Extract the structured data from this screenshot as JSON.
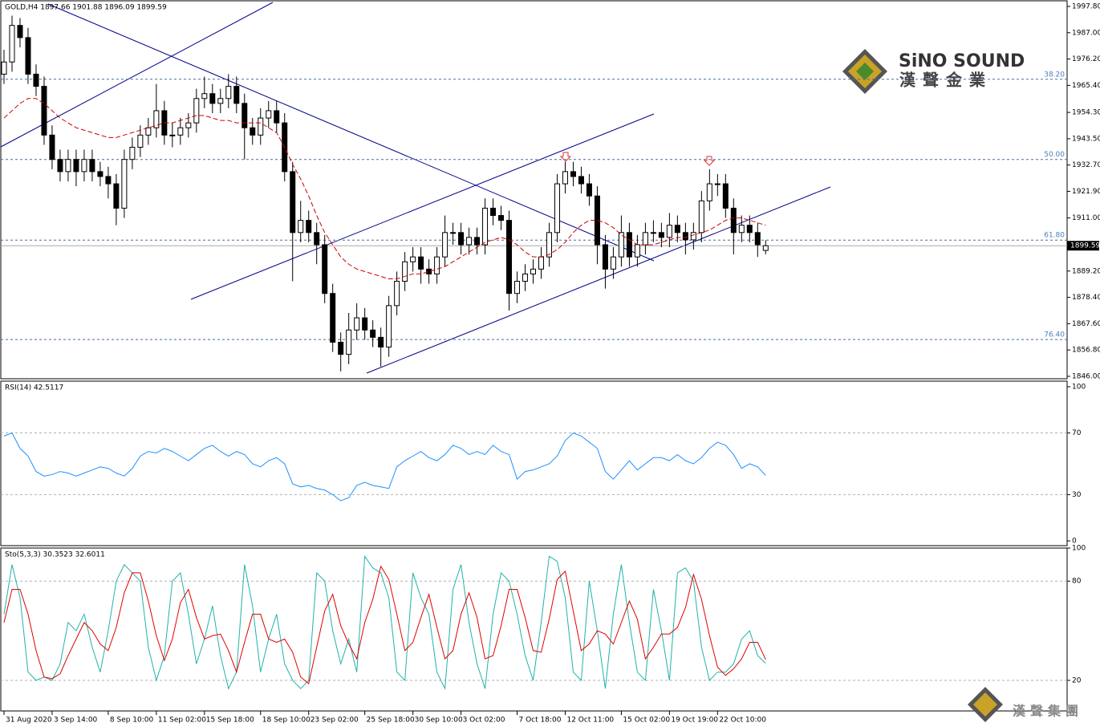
{
  "chart_data": [
    {
      "type": "candlestick",
      "title": "GOLD,H4  1897.66 1901.88 1896.09 1899.59",
      "color": "#000000",
      "candles": [
        [
          1970,
          1980,
          1966,
          1975
        ],
        [
          1975,
          1994,
          1971,
          1990
        ],
        [
          1990,
          1993,
          1981,
          1985
        ],
        [
          1985,
          1989,
          1966,
          1970
        ],
        [
          1970,
          1974,
          1961,
          1965
        ],
        [
          1965,
          1969,
          1941,
          1945
        ],
        [
          1945,
          1949,
          1931,
          1935
        ],
        [
          1935,
          1939,
          1926,
          1930
        ],
        [
          1930,
          1939,
          1926,
          1935
        ],
        [
          1935,
          1939,
          1924,
          1930
        ],
        [
          1930,
          1939,
          1926,
          1935
        ],
        [
          1935,
          1939,
          1926,
          1930
        ],
        [
          1930,
          1934,
          1924,
          1928
        ],
        [
          1928,
          1932,
          1919,
          1925
        ],
        [
          1925,
          1929,
          1908,
          1915
        ],
        [
          1915,
          1939,
          1911,
          1935
        ],
        [
          1935,
          1944,
          1931,
          1940
        ],
        [
          1940,
          1949,
          1936,
          1945
        ],
        [
          1945,
          1952,
          1941,
          1948
        ],
        [
          1948,
          1966,
          1944,
          1955
        ],
        [
          1955,
          1959,
          1941,
          1945
        ],
        [
          1945,
          1950,
          1940,
          1945
        ],
        [
          1945,
          1952,
          1941,
          1948
        ],
        [
          1948,
          1954,
          1944,
          1950
        ],
        [
          1950,
          1964,
          1946,
          1960
        ],
        [
          1960,
          1969,
          1956,
          1962
        ],
        [
          1962,
          1966,
          1954,
          1958
        ],
        [
          1958,
          1964,
          1954,
          1960
        ],
        [
          1960,
          1970,
          1956,
          1965
        ],
        [
          1965,
          1969,
          1954,
          1958
        ],
        [
          1958,
          1962,
          1935,
          1948
        ],
        [
          1948,
          1952,
          1941,
          1945
        ],
        [
          1945,
          1956,
          1941,
          1952
        ],
        [
          1952,
          1959,
          1948,
          1955
        ],
        [
          1955,
          1959,
          1946,
          1950
        ],
        [
          1950,
          1954,
          1926,
          1930
        ],
        [
          1930,
          1934,
          1885,
          1905
        ],
        [
          1905,
          1918,
          1901,
          1910
        ],
        [
          1910,
          1914,
          1901,
          1905
        ],
        [
          1905,
          1909,
          1892,
          1900
        ],
        [
          1900,
          1904,
          1876,
          1880
        ],
        [
          1880,
          1884,
          1856,
          1860
        ],
        [
          1860,
          1864,
          1848,
          1855
        ],
        [
          1855,
          1872,
          1851,
          1865
        ],
        [
          1865,
          1876,
          1861,
          1870
        ],
        [
          1870,
          1874,
          1861,
          1865
        ],
        [
          1865,
          1869,
          1858,
          1862
        ],
        [
          1862,
          1866,
          1850,
          1858
        ],
        [
          1858,
          1879,
          1854,
          1875
        ],
        [
          1875,
          1889,
          1871,
          1885
        ],
        [
          1885,
          1897,
          1881,
          1893
        ],
        [
          1893,
          1899,
          1889,
          1895
        ],
        [
          1895,
          1899,
          1884,
          1890
        ],
        [
          1890,
          1894,
          1884,
          1888
        ],
        [
          1888,
          1899,
          1884,
          1895
        ],
        [
          1895,
          1912,
          1891,
          1905
        ],
        [
          1905,
          1909,
          1900,
          1905
        ],
        [
          1905,
          1909,
          1896,
          1900
        ],
        [
          1900,
          1907,
          1896,
          1903
        ],
        [
          1903,
          1907,
          1896,
          1900
        ],
        [
          1900,
          1919,
          1896,
          1915
        ],
        [
          1915,
          1919,
          1908,
          1912
        ],
        [
          1912,
          1916,
          1906,
          1910
        ],
        [
          1910,
          1914,
          1873,
          1880
        ],
        [
          1880,
          1889,
          1876,
          1885
        ],
        [
          1885,
          1892,
          1881,
          1888
        ],
        [
          1888,
          1894,
          1884,
          1890
        ],
        [
          1890,
          1899,
          1886,
          1895
        ],
        [
          1895,
          1909,
          1891,
          1905
        ],
        [
          1905,
          1929,
          1901,
          1925
        ],
        [
          1925,
          1934,
          1921,
          1930
        ],
        [
          1930,
          1934,
          1924,
          1928
        ],
        [
          1928,
          1932,
          1921,
          1925
        ],
        [
          1925,
          1929,
          1916,
          1920
        ],
        [
          1920,
          1924,
          1892,
          1900
        ],
        [
          1900,
          1904,
          1882,
          1890
        ],
        [
          1890,
          1899,
          1886,
          1895
        ],
        [
          1895,
          1912,
          1891,
          1905
        ],
        [
          1905,
          1909,
          1891,
          1895
        ],
        [
          1895,
          1904,
          1891,
          1900
        ],
        [
          1900,
          1909,
          1896,
          1905
        ],
        [
          1905,
          1910,
          1901,
          1905
        ],
        [
          1905,
          1909,
          1899,
          1903
        ],
        [
          1903,
          1913,
          1899,
          1908
        ],
        [
          1908,
          1912,
          1901,
          1905
        ],
        [
          1905,
          1909,
          1896,
          1902
        ],
        [
          1902,
          1909,
          1898,
          1905
        ],
        [
          1905,
          1922,
          1901,
          1918
        ],
        [
          1918,
          1931,
          1914,
          1925
        ],
        [
          1925,
          1929,
          1920,
          1925
        ],
        [
          1925,
          1929,
          1911,
          1915
        ],
        [
          1915,
          1919,
          1896,
          1905
        ],
        [
          1905,
          1912,
          1901,
          1908
        ],
        [
          1908,
          1912,
          1901,
          1905
        ],
        [
          1905,
          1909,
          1895,
          1900
        ],
        [
          1897.66,
          1901.88,
          1896.09,
          1899.59
        ]
      ],
      "ma": {
        "color": "#cc0000",
        "values": [
          1952,
          1955,
          1958,
          1960,
          1960,
          1958,
          1955,
          1952,
          1950,
          1948,
          1947,
          1946,
          1945,
          1944,
          1944,
          1945,
          1946,
          1947,
          1948,
          1949,
          1950,
          1950,
          1951,
          1952,
          1953,
          1953,
          1952,
          1951,
          1951,
          1950,
          1950,
          1950,
          1950,
          1948,
          1946,
          1940,
          1933,
          1927,
          1920,
          1912,
          1905,
          1900,
          1895,
          1892,
          1890,
          1889,
          1888,
          1887,
          1886,
          1886,
          1887,
          1888,
          1888,
          1889,
          1890,
          1891,
          1893,
          1895,
          1897,
          1899,
          1901,
          1902,
          1903,
          1902,
          1900,
          1897,
          1895,
          1895,
          1896,
          1898,
          1901,
          1905,
          1908,
          1910,
          1910,
          1909,
          1907,
          1904,
          1902,
          1900,
          1900,
          1900,
          1901,
          1902,
          1903,
          1903,
          1904,
          1905,
          1906,
          1908,
          1910,
          1911,
          1911,
          1910,
          1909,
          1908
        ]
      },
      "ylim": [
        1845,
        2000.1
      ],
      "yticks": [
        {
          "value": 1997.8,
          "label": "1997.80"
        },
        {
          "value": 1987,
          "label": "1987.00"
        },
        {
          "value": 1976.2,
          "label": "1976.20"
        },
        {
          "value": 1965.4,
          "label": "1965.40"
        },
        {
          "value": 1954.3,
          "label": "1954.30"
        },
        {
          "value": 1943.5,
          "label": "1943.50"
        },
        {
          "value": 1932.7,
          "label": "1932.70"
        },
        {
          "value": 1921.9,
          "label": "1921.90"
        },
        {
          "value": 1911,
          "label": "1911.00"
        },
        {
          "value": 1889.2,
          "label": "1889.20"
        },
        {
          "value": 1878.4,
          "label": "1878.40"
        },
        {
          "value": 1867.6,
          "label": "1867.60"
        },
        {
          "value": 1856.8,
          "label": "1856.80"
        },
        {
          "value": 1846,
          "label": "1846.00"
        }
      ],
      "last_price": 1899.59,
      "fib_levels": [
        {
          "label": "38.20",
          "price": 1967.9
        },
        {
          "label": "50.00",
          "price": 1935.0
        },
        {
          "label": "61.80",
          "price": 1901.9
        },
        {
          "label": "76.40",
          "price": 1861.1
        }
      ],
      "xlim": [
        -0.4,
        132.6
      ],
      "xticks": [
        {
          "value": 0,
          "label": "31 Aug 2020"
        },
        {
          "value": 6,
          "label": "3 Sep 14:00"
        },
        {
          "value": 13,
          "label": "8 Sep 10:00"
        },
        {
          "value": 19,
          "label": "11 Sep 02:00"
        },
        {
          "value": 25,
          "label": "15 Sep 18:00"
        },
        {
          "value": 32,
          "label": "18 Sep 10:00"
        },
        {
          "value": 38,
          "label": "23 Sep 02:00"
        },
        {
          "value": 45,
          "label": "25 Sep 18:00"
        },
        {
          "value": 51,
          "label": "30 Sep 10:00"
        },
        {
          "value": 57,
          "label": "3 Oct 02:00"
        },
        {
          "value": 64,
          "label": "7 Oct 18:00"
        },
        {
          "value": 70,
          "label": "12 Oct 11:00"
        },
        {
          "value": 77,
          "label": "15 Oct 02:00"
        },
        {
          "value": 83,
          "label": "19 Oct 19:00"
        },
        {
          "value": 89,
          "label": "22 Oct 10:00"
        }
      ]
    },
    {
      "type": "line",
      "title": "RSI(14) 42.5117",
      "series": [
        {
          "color": "#1e90ff",
          "values": [
            68,
            70,
            60,
            55,
            45,
            42,
            43,
            45,
            44,
            42,
            44,
            46,
            48,
            47,
            44,
            42,
            47,
            55,
            58,
            57,
            60,
            58,
            55,
            52,
            56,
            60,
            62,
            58,
            55,
            58,
            56,
            50,
            48,
            52,
            54,
            50,
            37,
            35,
            36,
            34,
            33,
            30,
            26,
            28,
            36,
            38,
            36,
            35,
            34,
            48,
            52,
            55,
            58,
            54,
            52,
            56,
            62,
            60,
            56,
            58,
            56,
            62,
            58,
            56,
            40,
            45,
            46,
            48,
            50,
            55,
            65,
            70,
            68,
            64,
            60,
            45,
            40,
            46,
            52,
            46,
            50,
            54,
            54,
            52,
            56,
            52,
            50,
            54,
            60,
            64,
            62,
            56,
            47,
            50,
            48,
            42.5117
          ]
        }
      ],
      "ylim": [
        -3.1,
        103.6
      ],
      "yticks": [
        100,
        70,
        30,
        0
      ],
      "ygrid": [
        false,
        true,
        true,
        false
      ],
      "xlim": [
        -0.4,
        132.6
      ]
    },
    {
      "type": "line",
      "title": "Sto(5,3,3) 30.3523 32.6011",
      "series": [
        {
          "color": "#20b2aa",
          "values": [
            60,
            90,
            70,
            25,
            20,
            22,
            20,
            30,
            55,
            50,
            60,
            40,
            25,
            50,
            80,
            90,
            85,
            80,
            40,
            20,
            35,
            80,
            85,
            60,
            30,
            45,
            65,
            35,
            15,
            25,
            90,
            65,
            25,
            45,
            60,
            30,
            20,
            15,
            20,
            85,
            80,
            50,
            30,
            45,
            25,
            95,
            88,
            85,
            70,
            25,
            20,
            85,
            70,
            60,
            25,
            15,
            75,
            90,
            55,
            30,
            15,
            60,
            85,
            80,
            60,
            35,
            20,
            55,
            95,
            92,
            70,
            25,
            20,
            80,
            50,
            15,
            60,
            90,
            55,
            25,
            20,
            75,
            50,
            20,
            85,
            88,
            80,
            40,
            20,
            25,
            25,
            30,
            45,
            50,
            35,
            30.3523
          ]
        },
        {
          "color": "#e00000",
          "values": [
            55,
            75,
            75,
            60,
            38,
            22,
            21,
            24,
            35,
            45,
            55,
            50,
            42,
            38,
            52,
            73,
            85,
            85,
            68,
            47,
            32,
            45,
            67,
            75,
            58,
            45,
            47,
            48,
            38,
            25,
            43,
            60,
            60,
            45,
            43,
            45,
            37,
            22,
            18,
            40,
            62,
            72,
            53,
            42,
            33,
            55,
            69,
            89,
            81,
            60,
            38,
            43,
            58,
            72,
            52,
            33,
            38,
            60,
            73,
            58,
            33,
            35,
            53,
            75,
            75,
            58,
            38,
            37,
            57,
            81,
            86,
            62,
            38,
            42,
            50,
            48,
            42,
            55,
            68,
            57,
            33,
            40,
            48,
            48,
            52,
            64,
            84,
            69,
            47,
            28,
            23,
            27,
            33,
            43,
            43,
            32.6011
          ]
        }
      ],
      "ylim": [
        1.5,
        100
      ],
      "yticks": [
        100,
        80,
        20
      ],
      "ygrid": [
        false,
        true,
        true
      ],
      "xlim": [
        -0.4,
        132.6
      ]
    }
  ],
  "logo": {
    "name": "SiNO SOUND",
    "chinese": "漢聲金業",
    "footer": "漢聲集團"
  }
}
